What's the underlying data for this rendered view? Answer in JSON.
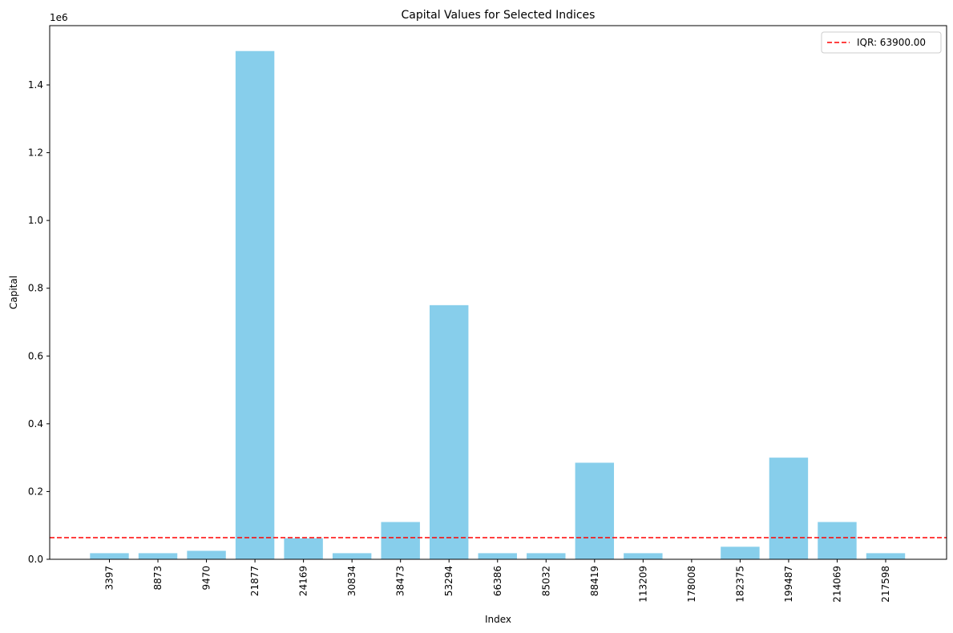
{
  "chart_data": {
    "type": "bar",
    "title": "Capital Values for Selected Indices",
    "xlabel": "Index",
    "ylabel": "Capital",
    "y_scale_label": "1e6",
    "categories": [
      "3397",
      "8873",
      "9470",
      "21877",
      "24169",
      "30834",
      "38473",
      "53294",
      "66386",
      "85032",
      "88419",
      "113209",
      "178008",
      "182375",
      "199487",
      "214069",
      "217598"
    ],
    "values": [
      18000,
      18000,
      25000,
      1500000,
      62000,
      18000,
      110000,
      750000,
      18000,
      18000,
      285000,
      18000,
      0,
      37000,
      300000,
      110000,
      18000
    ],
    "y_ticks": [
      0,
      200000,
      400000,
      600000,
      800000,
      1000000,
      1200000,
      1400000
    ],
    "y_tick_labels": [
      "0.0",
      "0.2",
      "0.4",
      "0.6",
      "0.8",
      "1.0",
      "1.2",
      "1.4"
    ],
    "ylim": [
      0,
      1575000
    ],
    "bar_color": "#87CEEB",
    "reference_line": {
      "value": 63900,
      "label": "IQR: 63900.00",
      "color": "#ff0000",
      "style": "dashed"
    },
    "legend_position": "top-right",
    "grid": false
  }
}
